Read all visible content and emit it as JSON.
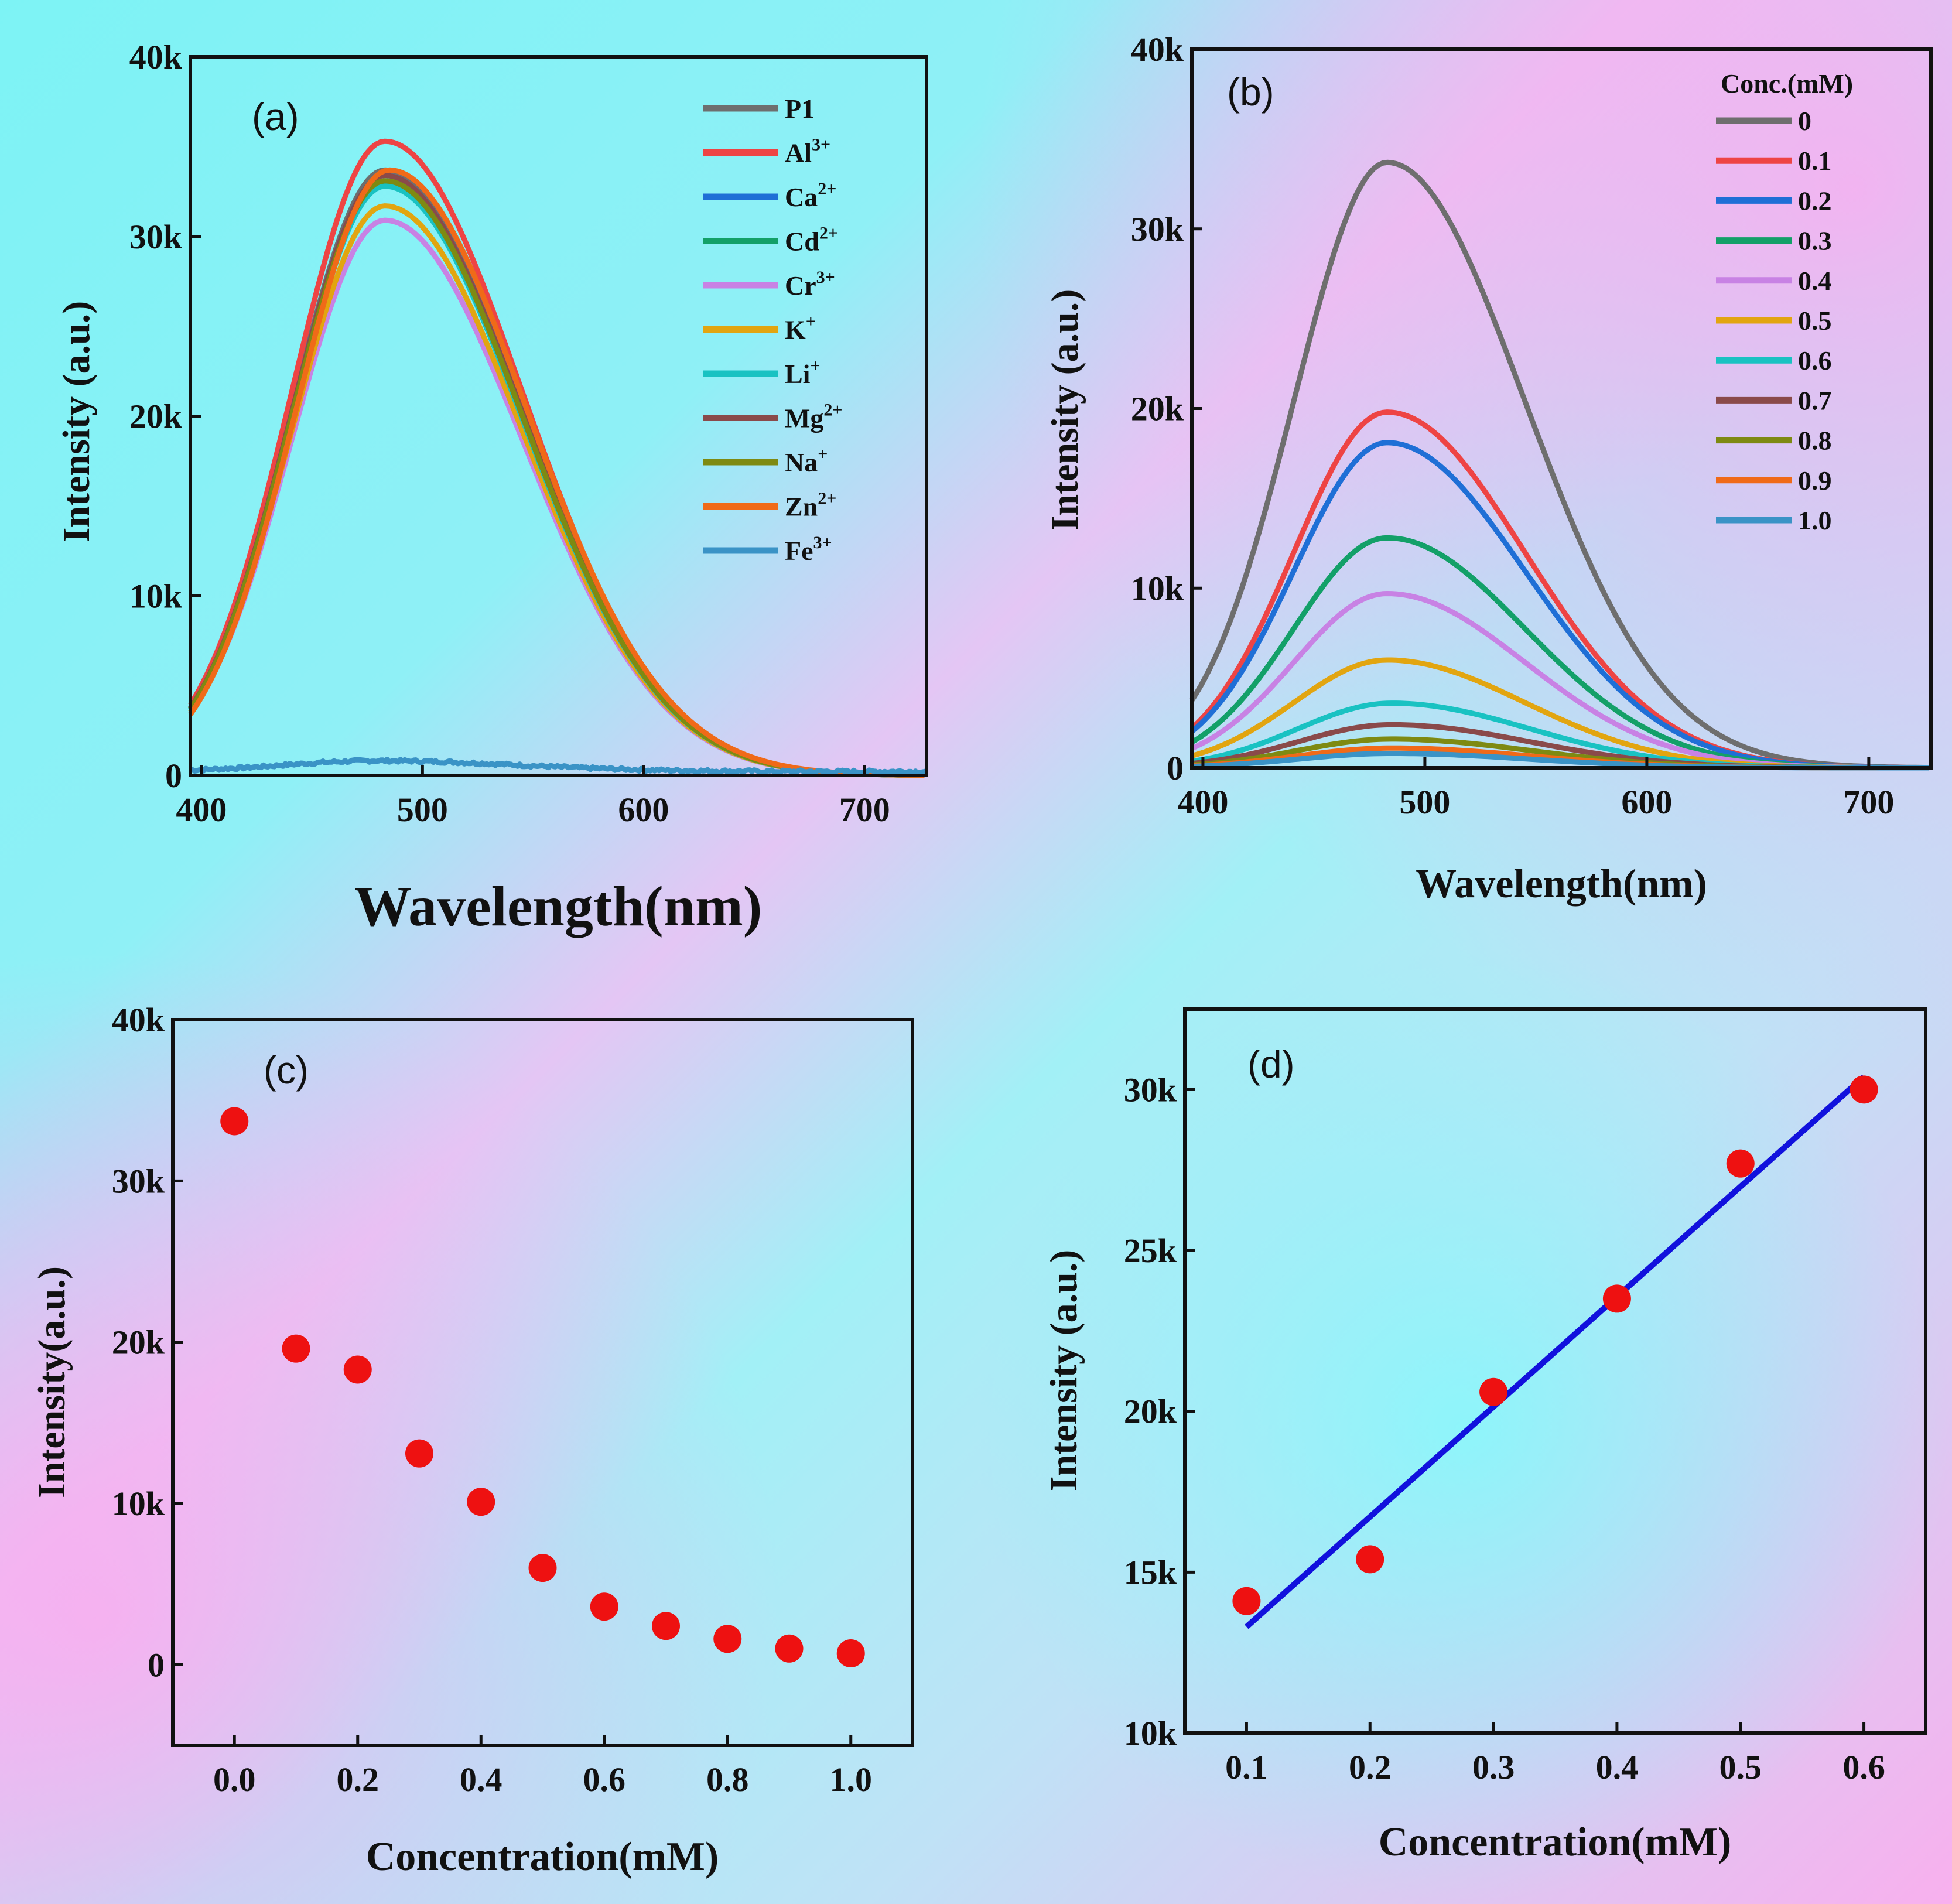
{
  "chart_data": [
    {
      "panel": "a",
      "type": "line",
      "panel_label": "(a)",
      "xlabel": "Wavelength(nm)",
      "ylabel": "Intensity (a.u.)",
      "xlim": [
        395,
        728
      ],
      "ylim": [
        0,
        40000
      ],
      "xticks": [
        {
          "v": 400,
          "label": "400"
        },
        {
          "v": 500,
          "label": "500"
        },
        {
          "v": 600,
          "label": "600"
        },
        {
          "v": 700,
          "label": "700"
        }
      ],
      "yticks": [
        {
          "v": 0,
          "label": "0"
        },
        {
          "v": 10000,
          "label": "10k"
        },
        {
          "v": 20000,
          "label": "20k"
        },
        {
          "v": 30000,
          "label": "30k"
        },
        {
          "v": 40000,
          "label": "40k"
        }
      ],
      "legend_position": "top-right",
      "series": [
        {
          "name": "P1",
          "label": "P1",
          "sup": "",
          "color": "#6e6e6e",
          "peak": 33700,
          "center": 483
        },
        {
          "name": "Al3+",
          "label": "Al",
          "sup": "3+",
          "color": "#ee4444",
          "peak": 35300,
          "center": 483
        },
        {
          "name": "Ca2+",
          "label": "Ca",
          "sup": "2+",
          "color": "#1f6fd6",
          "peak": 33400,
          "center": 483
        },
        {
          "name": "Cd2+",
          "label": "Cd",
          "sup": "2+",
          "color": "#13a068",
          "peak": 33000,
          "center": 483
        },
        {
          "name": "Cr3+",
          "label": "Cr",
          "sup": "3+",
          "color": "#c882e4",
          "peak": 30900,
          "center": 483
        },
        {
          "name": "K+",
          "label": "K",
          "sup": "+",
          "color": "#e2a510",
          "peak": 31700,
          "center": 483
        },
        {
          "name": "Li+",
          "label": "Li",
          "sup": "+",
          "color": "#19c2c2",
          "peak": 32800,
          "center": 483
        },
        {
          "name": "Mg2+",
          "label": "Mg",
          "sup": "2+",
          "color": "#8a4a4a",
          "peak": 33400,
          "center": 483
        },
        {
          "name": "Na+",
          "label": "Na",
          "sup": "+",
          "color": "#7e8a12",
          "peak": 33100,
          "center": 483
        },
        {
          "name": "Zn2+",
          "label": "Zn",
          "sup": "2+",
          "color": "#f06a18",
          "peak": 33700,
          "center": 485
        },
        {
          "name": "Fe3+",
          "label": "Fe",
          "sup": "3+",
          "color": "#3a93c6",
          "peak": 600,
          "center": 480
        }
      ]
    },
    {
      "panel": "b",
      "type": "line",
      "panel_label": "(b)",
      "xlabel": "Wavelength(nm)",
      "ylabel": "Intensity (a.u.)",
      "xlim": [
        395,
        728
      ],
      "ylim": [
        0,
        40000
      ],
      "xticks": [
        {
          "v": 400,
          "label": "400"
        },
        {
          "v": 500,
          "label": "500"
        },
        {
          "v": 600,
          "label": "600"
        },
        {
          "v": 700,
          "label": "700"
        }
      ],
      "yticks": [
        {
          "v": 0,
          "label": "0"
        },
        {
          "v": 10000,
          "label": "10k"
        },
        {
          "v": 20000,
          "label": "20k"
        },
        {
          "v": 30000,
          "label": "30k"
        },
        {
          "v": 40000,
          "label": "40k"
        }
      ],
      "legend_title": "Conc.(mM)",
      "legend_position": "top-right",
      "series": [
        {
          "name": "0",
          "color": "#6e6e6e",
          "peak": 33700,
          "center": 483
        },
        {
          "name": "0.1",
          "color": "#ee4444",
          "peak": 19800,
          "center": 483
        },
        {
          "name": "0.2",
          "color": "#1f6fd6",
          "peak": 18100,
          "center": 483
        },
        {
          "name": "0.3",
          "color": "#13a068",
          "peak": 12800,
          "center": 483
        },
        {
          "name": "0.4",
          "color": "#c882e4",
          "peak": 9700,
          "center": 483
        },
        {
          "name": "0.5",
          "color": "#e2a510",
          "peak": 6000,
          "center": 483
        },
        {
          "name": "0.6",
          "color": "#19c2c2",
          "peak": 3600,
          "center": 485
        },
        {
          "name": "0.7",
          "color": "#8a4a4a",
          "peak": 2400,
          "center": 485
        },
        {
          "name": "0.8",
          "color": "#7e8a12",
          "peak": 1600,
          "center": 485
        },
        {
          "name": "0.9",
          "color": "#f06a18",
          "peak": 1100,
          "center": 485
        },
        {
          "name": "1.0",
          "color": "#3a93c6",
          "peak": 800,
          "center": 485
        }
      ]
    },
    {
      "panel": "c",
      "type": "scatter",
      "panel_label": "(c)",
      "xlabel": "Concentration(mM)",
      "ylabel": "Intensity(a.u.)",
      "xlim": [
        -0.1,
        1.1
      ],
      "ylim": [
        -5000,
        40000
      ],
      "xticks": [
        {
          "v": 0,
          "label": "0.0"
        },
        {
          "v": 0.2,
          "label": "0.2"
        },
        {
          "v": 0.4,
          "label": "0.4"
        },
        {
          "v": 0.6,
          "label": "0.6"
        },
        {
          "v": 0.8,
          "label": "0.8"
        },
        {
          "v": 1.0,
          "label": "1.0"
        }
      ],
      "yticks": [
        {
          "v": 0,
          "label": "0"
        },
        {
          "v": 10000,
          "label": "10k"
        },
        {
          "v": 20000,
          "label": "20k"
        },
        {
          "v": 30000,
          "label": "30k"
        },
        {
          "v": 40000,
          "label": "40k"
        }
      ],
      "x": [
        0,
        0.1,
        0.2,
        0.3,
        0.4,
        0.5,
        0.6,
        0.7,
        0.8,
        0.9,
        1.0
      ],
      "y": [
        33700,
        19600,
        18300,
        13100,
        10100,
        6000,
        3600,
        2400,
        1600,
        1000,
        700
      ],
      "marker_color": "#ee1111"
    },
    {
      "panel": "d",
      "type": "scatter",
      "panel_label": "(d)",
      "xlabel": "Concentration(mM)",
      "ylabel": "Intensity (a.u.)",
      "xlim": [
        0.05,
        0.65
      ],
      "ylim": [
        10000,
        32500
      ],
      "xticks": [
        {
          "v": 0.1,
          "label": "0.1"
        },
        {
          "v": 0.2,
          "label": "0.2"
        },
        {
          "v": 0.3,
          "label": "0.3"
        },
        {
          "v": 0.4,
          "label": "0.4"
        },
        {
          "v": 0.5,
          "label": "0.5"
        },
        {
          "v": 0.6,
          "label": "0.6"
        }
      ],
      "yticks": [
        {
          "v": 10000,
          "label": "10k"
        },
        {
          "v": 15000,
          "label": "15k"
        },
        {
          "v": 20000,
          "label": "20k"
        },
        {
          "v": 25000,
          "label": "25k"
        },
        {
          "v": 30000,
          "label": "30k"
        }
      ],
      "x": [
        0.1,
        0.2,
        0.3,
        0.4,
        0.5,
        0.6
      ],
      "y": [
        14100,
        15400,
        20600,
        23500,
        27700,
        30000
      ],
      "marker_color": "#ee1111",
      "fit_line": {
        "x": [
          0.1,
          0.6
        ],
        "y": [
          13300,
          30400
        ],
        "color": "#1111dd"
      }
    }
  ]
}
